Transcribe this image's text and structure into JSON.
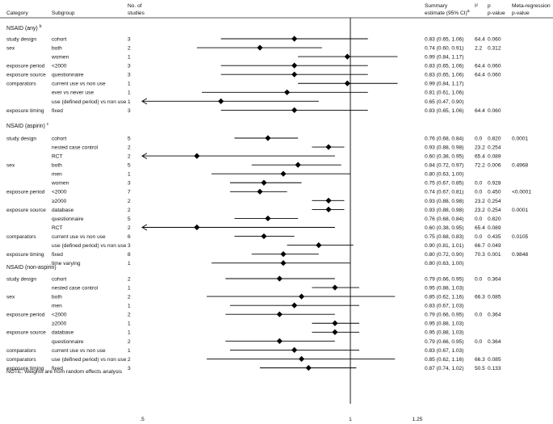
{
  "headers": {
    "category": "Category",
    "subgroup": "Subgroup",
    "studies_line1": "No. of",
    "studies_line2": "studies",
    "estimate_line1": "Summary",
    "estimate_line2": "estimate (95% CI)",
    "estimate_sup": "a",
    "i2": "I²",
    "p_line1": "p",
    "p_line2": "p-value",
    "meta_line1": "Meta-regression",
    "meta_line2": "p-value"
  },
  "chart_data": {
    "type": "forest",
    "xscale": "log",
    "xlim": [
      0.5,
      1.25
    ],
    "reference_line": 1,
    "ticks": [
      {
        "value": 0.5,
        "label": ".5"
      },
      {
        "value": 1,
        "label": "1"
      },
      {
        "value": 1.25,
        "label": "1.25"
      }
    ],
    "marker_color": "#000000",
    "sections": [
      {
        "title": "NSAID (any)",
        "sup": "b",
        "rows": [
          {
            "category": "study design",
            "subgroup": "cohort",
            "studies": "3",
            "est": 0.83,
            "lo": 0.65,
            "hi": 1.06,
            "ci_text": "0.83 (0.65, 1.06)",
            "i2": "64.4",
            "p": "0.060",
            "meta_p": ""
          },
          {
            "category": "sex",
            "subgroup": "both",
            "studies": "2",
            "est": 0.74,
            "lo": 0.6,
            "hi": 0.91,
            "ci_text": "0.74 (0.60, 0.91)",
            "i2": "2.2",
            "p": "0.312",
            "meta_p": ""
          },
          {
            "category": "",
            "subgroup": "women",
            "studies": "1",
            "est": 0.99,
            "lo": 0.84,
            "hi": 1.17,
            "ci_text": "0.99 (0.84, 1.17)",
            "i2": "",
            "p": "",
            "meta_p": ""
          },
          {
            "category": "exposure period",
            "subgroup": "<2000",
            "studies": "3",
            "est": 0.83,
            "lo": 0.65,
            "hi": 1.06,
            "ci_text": "0.83 (0.65, 1.06)",
            "i2": "64.4",
            "p": "0.060",
            "meta_p": ""
          },
          {
            "category": "exposure source",
            "subgroup": "questionnaire",
            "studies": "3",
            "est": 0.83,
            "lo": 0.65,
            "hi": 1.06,
            "ci_text": "0.83 (0.65, 1.06)",
            "i2": "64.4",
            "p": "0.060",
            "meta_p": ""
          },
          {
            "category": "comparators",
            "subgroup": "current use vs non use",
            "studies": "1",
            "est": 0.99,
            "lo": 0.84,
            "hi": 1.17,
            "ci_text": "0.99 (0.84, 1.17)",
            "i2": "",
            "p": "",
            "meta_p": ""
          },
          {
            "category": "",
            "subgroup": "ever vs never use",
            "studies": "1",
            "est": 0.81,
            "lo": 0.61,
            "hi": 1.06,
            "ci_text": "0.81 (0.61, 1.06)",
            "i2": "",
            "p": "",
            "meta_p": ""
          },
          {
            "category": "",
            "subgroup": "use (defined period) vs non use",
            "studies": "1",
            "est": 0.65,
            "lo": 0.47,
            "hi": 0.9,
            "ci_text": "0.65 (0.47, 0.90)",
            "i2": "",
            "p": "",
            "meta_p": ""
          },
          {
            "category": "exposure timing",
            "subgroup": "fixed",
            "studies": "3",
            "est": 0.83,
            "lo": 0.65,
            "hi": 1.06,
            "ci_text": "0.83 (0.65, 1.06)",
            "i2": "64.4",
            "p": "0.060",
            "meta_p": ""
          }
        ]
      },
      {
        "title": "NSAID (aspirin)",
        "sup": "c",
        "rows": [
          {
            "category": "study design",
            "subgroup": "cohort",
            "studies": "5",
            "est": 0.76,
            "lo": 0.68,
            "hi": 0.84,
            "ci_text": "0.76 (0.68, 0.84)",
            "i2": "0.0",
            "p": "0.820",
            "meta_p": "0.0001"
          },
          {
            "category": "",
            "subgroup": "nested case control",
            "studies": "2",
            "est": 0.93,
            "lo": 0.88,
            "hi": 0.98,
            "ci_text": "0.93 (0.88, 0.98)",
            "i2": "23.2",
            "p": "0.254",
            "meta_p": ""
          },
          {
            "category": "",
            "subgroup": "RCT",
            "studies": "2",
            "est": 0.6,
            "lo": 0.38,
            "hi": 0.95,
            "ci_text": "0.60 (0.38, 0.95)",
            "i2": "65.4",
            "p": "0.089",
            "meta_p": ""
          },
          {
            "category": "sex",
            "subgroup": "both",
            "studies": "5",
            "est": 0.84,
            "lo": 0.72,
            "hi": 0.97,
            "ci_text": "0.84 (0.72, 0.97)",
            "i2": "72.2",
            "p": "0.006",
            "meta_p": "0.4968"
          },
          {
            "category": "",
            "subgroup": "men",
            "studies": "1",
            "est": 0.8,
            "lo": 0.63,
            "hi": 1.0,
            "ci_text": "0.80 (0.63, 1.00)",
            "i2": "",
            "p": "",
            "meta_p": ""
          },
          {
            "category": "",
            "subgroup": "women",
            "studies": "3",
            "est": 0.75,
            "lo": 0.67,
            "hi": 0.85,
            "ci_text": "0.75 (0.67, 0.85)",
            "i2": "0.0",
            "p": "0.928",
            "meta_p": ""
          },
          {
            "category": "exposure period",
            "subgroup": "<2000",
            "studies": "7",
            "est": 0.74,
            "lo": 0.67,
            "hi": 0.81,
            "ci_text": "0.74 (0.67, 0.81)",
            "i2": "0.0",
            "p": "0.450",
            "meta_p": "<0.0001"
          },
          {
            "category": "",
            "subgroup": "≥2000",
            "studies": "2",
            "est": 0.93,
            "lo": 0.88,
            "hi": 0.98,
            "ci_text": "0.93 (0.88, 0.98)",
            "i2": "23.2",
            "p": "0.254",
            "meta_p": ""
          },
          {
            "category": "exposure source",
            "subgroup": "database",
            "studies": "2",
            "est": 0.93,
            "lo": 0.88,
            "hi": 0.98,
            "ci_text": "0.93 (0.88, 0.98)",
            "i2": "23.2",
            "p": "0.254",
            "meta_p": "0.0001"
          },
          {
            "category": "",
            "subgroup": "questionnaire",
            "studies": "5",
            "est": 0.76,
            "lo": 0.68,
            "hi": 0.84,
            "ci_text": "0.76 (0.68, 0.84)",
            "i2": "0.0",
            "p": "0.820",
            "meta_p": ""
          },
          {
            "category": "",
            "subgroup": "RCT",
            "studies": "2",
            "est": 0.6,
            "lo": 0.38,
            "hi": 0.95,
            "ci_text": "0.60 (0.38, 0.95)",
            "i2": "65.4",
            "p": "0.089",
            "meta_p": ""
          },
          {
            "category": "comparators",
            "subgroup": "current use vs non use",
            "studies": "6",
            "est": 0.75,
            "lo": 0.68,
            "hi": 0.83,
            "ci_text": "0.75 (0.68, 0.83)",
            "i2": "0.0",
            "p": "0.435",
            "meta_p": "0.0105"
          },
          {
            "category": "",
            "subgroup": "use (defined period) vs non use",
            "studies": "3",
            "est": 0.9,
            "lo": 0.81,
            "hi": 1.01,
            "ci_text": "0.90 (0.81, 1.01)",
            "i2": "66.7",
            "p": "0.049",
            "meta_p": ""
          },
          {
            "category": "exposure timing",
            "subgroup": "fixed",
            "studies": "8",
            "est": 0.8,
            "lo": 0.72,
            "hi": 0.9,
            "ci_text": "0.80 (0.72, 0.90)",
            "i2": "70.3",
            "p": "0.001",
            "meta_p": "0.9848"
          },
          {
            "category": "",
            "subgroup": "time varying",
            "studies": "1",
            "est": 0.8,
            "lo": 0.63,
            "hi": 1.0,
            "ci_text": "0.80 (0.63, 1.00)",
            "i2": "",
            "p": "",
            "meta_p": ""
          }
        ]
      },
      {
        "title": "NSAID (non-aspirin)",
        "sup": "",
        "rows": [
          {
            "category": "study design",
            "subgroup": "cohort",
            "studies": "2",
            "est": 0.79,
            "lo": 0.66,
            "hi": 0.95,
            "ci_text": "0.79 (0.66, 0.95)",
            "i2": "0.0",
            "p": "0.364",
            "meta_p": ""
          },
          {
            "category": "",
            "subgroup": "nested case control",
            "studies": "1",
            "est": 0.95,
            "lo": 0.88,
            "hi": 1.03,
            "ci_text": "0.95 (0.88, 1.03)",
            "i2": "",
            "p": "",
            "meta_p": ""
          },
          {
            "category": "sex",
            "subgroup": "both",
            "studies": "2",
            "est": 0.85,
            "lo": 0.62,
            "hi": 1.16,
            "ci_text": "0.85 (0.62, 1.16)",
            "i2": "66.3",
            "p": "0.085",
            "meta_p": ""
          },
          {
            "category": "",
            "subgroup": "men",
            "studies": "1",
            "est": 0.83,
            "lo": 0.67,
            "hi": 1.03,
            "ci_text": "0.83 (0.67, 1.03)",
            "i2": "",
            "p": "",
            "meta_p": ""
          },
          {
            "category": "exposure period",
            "subgroup": "<2000",
            "studies": "2",
            "est": 0.79,
            "lo": 0.66,
            "hi": 0.95,
            "ci_text": "0.79 (0.66, 0.95)",
            "i2": "0.0",
            "p": "0.364",
            "meta_p": ""
          },
          {
            "category": "",
            "subgroup": "≥2000",
            "studies": "1",
            "est": 0.95,
            "lo": 0.88,
            "hi": 1.03,
            "ci_text": "0.95 (0.88, 1.03)",
            "i2": "",
            "p": "",
            "meta_p": ""
          },
          {
            "category": "exposure source",
            "subgroup": "database",
            "studies": "1",
            "est": 0.95,
            "lo": 0.88,
            "hi": 1.03,
            "ci_text": "0.95 (0.88, 1.03)",
            "i2": "",
            "p": "",
            "meta_p": ""
          },
          {
            "category": "",
            "subgroup": "questionnaire",
            "studies": "2",
            "est": 0.79,
            "lo": 0.66,
            "hi": 0.95,
            "ci_text": "0.79 (0.66, 0.95)",
            "i2": "0.0",
            "p": "0.364",
            "meta_p": ""
          },
          {
            "category": "comparators",
            "subgroup": "current use vs non use",
            "studies": "1",
            "est": 0.83,
            "lo": 0.67,
            "hi": 1.03,
            "ci_text": "0.83 (0.67, 1.03)",
            "i2": "",
            "p": "",
            "meta_p": ""
          },
          {
            "category": "comparators",
            "subgroup": "use (defined period) vs non use",
            "studies": "2",
            "est": 0.85,
            "lo": 0.62,
            "hi": 1.16,
            "ci_text": "0.85 (0.62, 1.16)",
            "i2": "66.3",
            "p": "0.085",
            "meta_p": ""
          },
          {
            "category": "exposure timing",
            "subgroup": "fixed",
            "studies": "3",
            "est": 0.87,
            "lo": 0.74,
            "hi": 1.02,
            "ci_text": "0.87 (0.74, 1.02)",
            "i2": "50.5",
            "p": "0.133",
            "meta_p": ""
          }
        ]
      }
    ],
    "note": "NOTE: Weights are from random effects analysis"
  }
}
